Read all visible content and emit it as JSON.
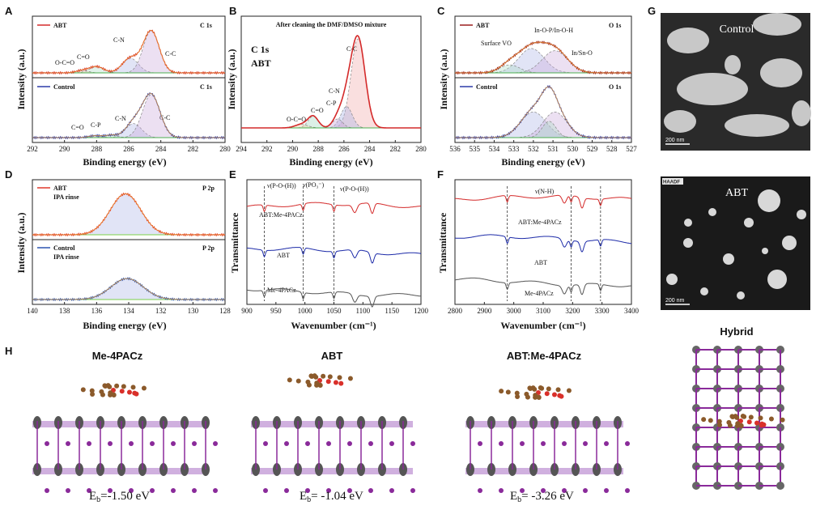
{
  "chart_data": [
    {
      "panel": "A",
      "type": "line",
      "xlabel": "Binding energy (eV)",
      "ylabel": "Intensity (a.u.)",
      "xlim": [
        292,
        280
      ],
      "ticks": [
        292,
        290,
        288,
        286,
        284,
        282,
        280
      ],
      "subplots": [
        {
          "legend": "ABT",
          "spectrum": "C 1s",
          "color": "#d42a2a",
          "peaks": [
            {
              "label": "C-N",
              "center": 285.9,
              "height": 0.33,
              "width": 0.5
            },
            {
              "label": "C-C",
              "center": 284.6,
              "height": 0.95,
              "width": 0.5
            },
            {
              "label": "C=O",
              "center": 288.0,
              "height": 0.14,
              "width": 0.45
            },
            {
              "label": "O-C=O",
              "center": 288.9,
              "height": 0.05,
              "width": 0.4
            }
          ]
        },
        {
          "legend": "Control",
          "spectrum": "C 1s",
          "color": "#2c3aa8",
          "peaks": [
            {
              "label": "C-N",
              "center": 285.7,
              "height": 0.3,
              "width": 0.5
            },
            {
              "label": "C-C",
              "center": 284.6,
              "height": 0.92,
              "width": 0.55
            },
            {
              "label": "C-P",
              "center": 287.1,
              "height": 0.05,
              "width": 0.4
            },
            {
              "label": "C=O",
              "center": 288.1,
              "height": 0.04,
              "width": 0.4
            }
          ]
        }
      ]
    },
    {
      "panel": "B",
      "type": "line",
      "title": "After cleaning the DMF/DMSO mixture",
      "spectrum": "C 1s",
      "sample": "ABT",
      "xlabel": "Binding energy (eV)",
      "ylabel": "Intensity (a.u.)",
      "xlim": [
        294,
        280
      ],
      "ticks": [
        294,
        292,
        290,
        288,
        286,
        284,
        282,
        280
      ],
      "color": "#d42a2a",
      "peaks": [
        {
          "label": "C-C",
          "center": 284.9,
          "height": 1.0,
          "width": 0.55
        },
        {
          "label": "C-N",
          "center": 285.8,
          "height": 0.24,
          "width": 0.45
        },
        {
          "label": "C-P",
          "center": 286.5,
          "height": 0.1,
          "width": 0.4
        },
        {
          "label": "C=O",
          "center": 288.4,
          "height": 0.13,
          "width": 0.4
        },
        {
          "label": "O-C=O",
          "center": 289.3,
          "height": 0.04,
          "width": 0.5
        }
      ]
    },
    {
      "panel": "C",
      "type": "line",
      "xlabel": "Binding energy (eV)",
      "ylabel": "Intensity (a.u.)",
      "xlim": [
        536,
        527
      ],
      "ticks": [
        536,
        535,
        534,
        533,
        532,
        531,
        530,
        529,
        528,
        527
      ],
      "subplots": [
        {
          "legend": "ABT",
          "spectrum": "O 1s",
          "color": "#9a1e1e",
          "peaks": [
            {
              "label": "In-O-P/In-O-H",
              "center": 532.1,
              "height": 0.55,
              "width": 0.65
            },
            {
              "label": "In/Sn-O",
              "center": 530.9,
              "height": 0.5,
              "width": 0.65
            },
            {
              "label": "Surface VO",
              "center": 533.2,
              "height": 0.18,
              "width": 0.5
            }
          ]
        },
        {
          "legend": "Control",
          "spectrum": "O 1s",
          "color": "#2c3aa8",
          "peaks": [
            {
              "label": "",
              "center": 532.0,
              "height": 0.55,
              "width": 0.65
            },
            {
              "label": "",
              "center": 530.9,
              "height": 0.55,
              "width": 0.6
            },
            {
              "label": "",
              "center": 531.2,
              "height": 0.35,
              "width": 0.35
            }
          ]
        }
      ]
    },
    {
      "panel": "D",
      "type": "line",
      "xlabel": "Binding energy (eV)",
      "ylabel": "Intensity (a.u.)",
      "xlim": [
        140,
        128
      ],
      "ticks": [
        140,
        138,
        136,
        134,
        132,
        130,
        128
      ],
      "subplots": [
        {
          "legend": "ABT",
          "note": "IPA rinse",
          "spectrum": "P 2p",
          "color": "#e0392a",
          "peaks": [
            {
              "center": 134.2,
              "height": 0.95,
              "width": 0.95
            }
          ]
        },
        {
          "legend": "Control",
          "note": "IPA rinse",
          "spectrum": "P 2p",
          "color": "#2c54b0",
          "peaks": [
            {
              "center": 134.1,
              "height": 0.45,
              "width": 1.0
            }
          ]
        }
      ]
    },
    {
      "panel": "E",
      "type": "line",
      "xlabel": "Wavenumber (cm⁻¹)",
      "ylabel": "Transmittance",
      "xlim": [
        900,
        1200
      ],
      "ticks": [
        900,
        950,
        1000,
        1050,
        1100,
        1150,
        1200
      ],
      "markers": [
        {
          "x": 930,
          "label": "ν(P-O-(H))"
        },
        {
          "x": 997,
          "label": "ν(PO₃⁻)"
        },
        {
          "x": 1050,
          "label": "ν(P-O-(H))"
        }
      ],
      "series": [
        {
          "name": "ABT:Me-4PACz",
          "color": "#d42a2a",
          "offset": 0.78
        },
        {
          "name": "ABT",
          "color": "#1c2aa8",
          "offset": 0.42
        },
        {
          "name": "Me-4PACz",
          "color": "#555555",
          "offset": 0.1
        }
      ]
    },
    {
      "panel": "F",
      "type": "line",
      "xlabel": "Wavenumber (cm⁻¹)",
      "ylabel": "Transmittance",
      "xlim": [
        2800,
        3400
      ],
      "ticks": [
        2800,
        2900,
        3000,
        3100,
        3200,
        3300,
        3400
      ],
      "markers": [
        {
          "x": 2978,
          "label": ""
        },
        {
          "x": 3195,
          "label": ""
        },
        {
          "x": 3295,
          "label": ""
        }
      ],
      "annotation": "ν(N-H)",
      "series": [
        {
          "name": "ABT:Me-4PACz",
          "color": "#d42a2a",
          "offset": 0.84
        },
        {
          "name": "ABT",
          "color": "#1c2aa8",
          "offset": 0.52
        },
        {
          "name": "Me-4PACz",
          "color": "#555555",
          "offset": 0.18
        }
      ]
    }
  ],
  "images": {
    "control": {
      "title": "Control",
      "scale": "200 nm"
    },
    "abt": {
      "title": "ABT",
      "scale": "200 nm",
      "badge": "HAADF"
    }
  },
  "models": {
    "hybrid_title": "Hybrid",
    "items": [
      {
        "title": "Me-4PACz",
        "energy_prefix": "E",
        "sub": "b",
        "energy_value": "=-1.50 eV"
      },
      {
        "title": "ABT",
        "energy_prefix": "E",
        "sub": "b",
        "energy_value": "= -1.04 eV"
      },
      {
        "title": "ABT:Me-4PACz",
        "energy_prefix": "E",
        "sub": "b",
        "energy_value": "= -3.26 eV"
      }
    ]
  },
  "panel_letters": [
    "A",
    "B",
    "C",
    "D",
    "E",
    "F",
    "G",
    "H"
  ]
}
